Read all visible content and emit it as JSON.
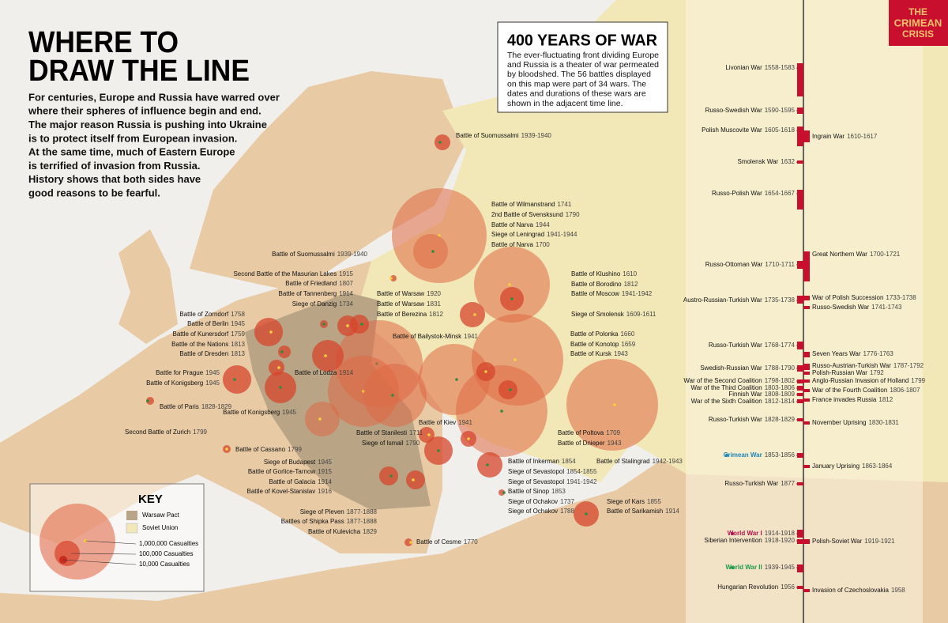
{
  "header": {
    "title": [
      "WHERE TO",
      "DRAW THE LINE"
    ],
    "intro": [
      "For centuries, Europe and Russia have warred over",
      "where their spheres of influence begin and end.",
      "The major reason Russia is pushing into Ukraine",
      "is to protect itself from European invasion.",
      "At the same time, much of Eastern Europe",
      "is terrified of invasion from Russia.",
      "History shows that both sides have",
      "good reasons to be fearful."
    ]
  },
  "info_box": {
    "title": "400 YEARS OF WAR",
    "text": [
      "The ever-fluctuating front dividing Europe",
      "and Russia is a theater of war permeated",
      "by bloodshed. The 56 battles displayed",
      "on this map were part of 34 wars. The",
      "dates and durations of these wars are",
      "shown in the adjacent time line."
    ]
  },
  "logo": [
    "THE",
    "CRIMEAN",
    "CRISIS"
  ],
  "key": {
    "title": "KEY",
    "areas": [
      "Warsaw Pact",
      "Soviet Union"
    ],
    "casualties": [
      "1,000,000 Casualties",
      "100,000 Casualties",
      "10,000 Casualties"
    ]
  },
  "battles": [
    {
      "name": "Battle of Suomussalmi",
      "years": "1939-1940"
    },
    {
      "name": "Battle of Wilmanstrand",
      "years": "1741"
    },
    {
      "name": "2nd Battle of Svensksund",
      "years": "1790"
    },
    {
      "name": "Battle of Narva",
      "years": "1944"
    },
    {
      "name": "Siege of Leningrad",
      "years": "1941-1944"
    },
    {
      "name": "Battle of Narva",
      "years": "1700"
    },
    {
      "name": "Battle of Suomussalmi",
      "years": "1939-1940"
    },
    {
      "name": "Second Battle of the Masurian Lakes",
      "years": "1915"
    },
    {
      "name": "Battle of Friedland",
      "years": "1807"
    },
    {
      "name": "Battle of Tannenberg",
      "years": "1914"
    },
    {
      "name": "Siege of Danzig",
      "years": "1734"
    },
    {
      "name": "Battle of Warsaw",
      "years": "1920"
    },
    {
      "name": "Battle of Warsaw",
      "years": "1831"
    },
    {
      "name": "Battle of Berezina",
      "years": "1812"
    },
    {
      "name": "Battle of Klushino",
      "years": "1610"
    },
    {
      "name": "Battle of Borodino",
      "years": "1812"
    },
    {
      "name": "Battle of Moscow",
      "years": "1941-1942"
    },
    {
      "name": "Siege of Smolensk",
      "years": "1609-1611"
    },
    {
      "name": "Battle of Zorndorf",
      "years": "1758"
    },
    {
      "name": "Battle of Berlin",
      "years": "1945"
    },
    {
      "name": "Battle of Kunersdorf",
      "years": "1759"
    },
    {
      "name": "Battle of the Nations",
      "years": "1813"
    },
    {
      "name": "Battle of Dresden",
      "years": "1813"
    },
    {
      "name": "Battle of Bailystok-Minsk",
      "years": "1941"
    },
    {
      "name": "Battle of Polonka",
      "years": "1660"
    },
    {
      "name": "Battle of Konotop",
      "years": "1659"
    },
    {
      "name": "Battle of Kursk",
      "years": "1943"
    },
    {
      "name": "Battle of Lodza",
      "years": "1914"
    },
    {
      "name": "Battle for Prague",
      "years": "1945"
    },
    {
      "name": "Battle of Konigsberg",
      "years": "1945"
    },
    {
      "name": "Battle of Paris",
      "years": "1828-1829"
    },
    {
      "name": "Battle of Konigsberg",
      "years": "1945"
    },
    {
      "name": "Battle of Kiev",
      "years": "1941"
    },
    {
      "name": "Second Battle of Zurich",
      "years": "1799"
    },
    {
      "name": "Battle of Stanilesti",
      "years": "1711"
    },
    {
      "name": "Siege of Ismail",
      "years": "1790"
    },
    {
      "name": "Battle of Poltova",
      "years": "1709"
    },
    {
      "name": "Battle of Dnieper",
      "years": "1943"
    },
    {
      "name": "Battle of Stalingrad",
      "years": "1942-1943"
    },
    {
      "name": "Battle of Cassano",
      "years": "1799"
    },
    {
      "name": "Siege of Budapest",
      "years": "1945"
    },
    {
      "name": "Battle of Gorlice-Tarnow",
      "years": "1915"
    },
    {
      "name": "Battle of Galacia",
      "years": "1914"
    },
    {
      "name": "Battle of Kovel-Stanislav",
      "years": "1916"
    },
    {
      "name": "Battle of Inkerman",
      "years": "1854"
    },
    {
      "name": "Siege of Sevastopol",
      "years": "1854-1855"
    },
    {
      "name": "Siege of Sevastopol",
      "years": "1941-1942"
    },
    {
      "name": "Battle of Sinop",
      "years": "1853"
    },
    {
      "name": "Siege of Ochakov",
      "years": "1737"
    },
    {
      "name": "Siege of Ochakov",
      "years": "1788"
    },
    {
      "name": "Siege of Kars",
      "years": "1855"
    },
    {
      "name": "Battle of Sarikamish",
      "years": "1914"
    },
    {
      "name": "Siege of Pleven",
      "years": "1877-1888"
    },
    {
      "name": "Battles of Shipka Pass",
      "years": "1877-1888"
    },
    {
      "name": "Battle of Kulevicha",
      "years": "1829"
    },
    {
      "name": "Battle of Cesme",
      "years": "1770"
    }
  ],
  "timeline": {
    "left": [
      {
        "name": "Livonian War",
        "years": "1558-1583"
      },
      {
        "name": "Russo-Swedish War",
        "years": "1590-1595"
      },
      {
        "name": "Polish Muscovite War",
        "years": "1605-1618"
      },
      {
        "name": "Smolensk War",
        "years": "1632"
      },
      {
        "name": "Russo-Polish War",
        "years": "1654-1667"
      },
      {
        "name": "Russo-Ottoman War",
        "years": "1710-1711"
      },
      {
        "name": "Austro-Russian-Turkish War",
        "years": "1735-1738"
      },
      {
        "name": "Russo-Turkish War",
        "years": "1768-1774"
      },
      {
        "name": "Swedish-Russian War",
        "years": "1788-1790"
      },
      {
        "name": "War of the Second Coalition",
        "years": "1798-1802"
      },
      {
        "name": "War of the Third Coalition",
        "years": "1803-1806"
      },
      {
        "name": "Finnish War",
        "years": "1808-1809"
      },
      {
        "name": "War of the Sixth Coalition",
        "years": "1812-1814"
      },
      {
        "name": "Russo-Turkish War",
        "years": "1828-1829"
      },
      {
        "name": "Crimean War",
        "years": "1853-1856",
        "color": "#1f86b8"
      },
      {
        "name": "Russo-Turkish War",
        "years": "1877"
      },
      {
        "name": "World War I",
        "years": "1914-1918",
        "color": "#b0124e"
      },
      {
        "name": "Siberian Intervention",
        "years": "1918-1920"
      },
      {
        "name": "World War II",
        "years": "1939-1945",
        "color": "#1f9a4a"
      },
      {
        "name": "Hungarian Revolution",
        "years": "1956"
      }
    ],
    "right": [
      {
        "name": "Ingrain War",
        "years": "1610-1617"
      },
      {
        "name": "Great Northern War",
        "years": "1700-1721"
      },
      {
        "name": "War of Polish Succession",
        "years": "1733-1738"
      },
      {
        "name": "Russo-Swedish War",
        "years": "1741-1743"
      },
      {
        "name": "Seven Years War",
        "years": "1776-1763"
      },
      {
        "name": "Russo-Austrian-Turkish War",
        "years": "1787-1792"
      },
      {
        "name": "Polish-Russian War",
        "years": "1792"
      },
      {
        "name": "Anglo-Russian Invasion of Holland",
        "years": "1799"
      },
      {
        "name": "War of the Fourth Coalition",
        "years": "1806-1807"
      },
      {
        "name": "France invades Russia",
        "years": "1812"
      },
      {
        "name": "November Uprising",
        "years": "1830-1831"
      },
      {
        "name": "January Uprising",
        "years": "1863-1864"
      },
      {
        "name": "Polish-Soviet War",
        "years": "1919-1921"
      },
      {
        "name": "Invasion of Czechoslovakia",
        "years": "1958"
      }
    ]
  }
}
